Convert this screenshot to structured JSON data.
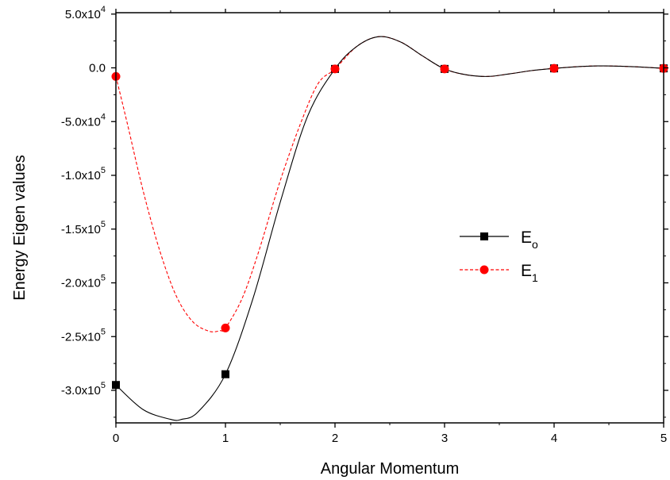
{
  "chart_data": {
    "type": "line",
    "title": "",
    "xlabel": "Angular Momentum",
    "ylabel": "Energy Eigen values",
    "xlim": [
      0,
      5
    ],
    "ylim": [
      -325000,
      52000
    ],
    "x_ticks": [
      0,
      1,
      2,
      3,
      4,
      5
    ],
    "x_tick_labels": [
      "0",
      "1",
      "2",
      "3",
      "4",
      "5"
    ],
    "y_ticks": [
      50000,
      0,
      -50000,
      -100000,
      -150000,
      -200000,
      -250000,
      -300000
    ],
    "y_tick_labels": [
      {
        "mantissa": "5.0x10",
        "exp": "4"
      },
      {
        "mantissa": "0.0",
        "exp": ""
      },
      {
        "mantissa": "-5.0x10",
        "exp": "4"
      },
      {
        "mantissa": "-1.0x10",
        "exp": "5"
      },
      {
        "mantissa": "-1.5x10",
        "exp": "5"
      },
      {
        "mantissa": "-2.0x10",
        "exp": "5"
      },
      {
        "mantissa": "-2.5x10",
        "exp": "5"
      },
      {
        "mantissa": "-3.0x10",
        "exp": "5"
      }
    ],
    "grid": false,
    "legend_position": "right-middle",
    "series": [
      {
        "name": "E",
        "name_subscript": "o",
        "color": "#000000",
        "line_style": "solid",
        "marker": "square",
        "x": [
          0,
          1,
          2,
          3,
          4,
          5
        ],
        "y": [
          -295000,
          -285000,
          -1000,
          -1000,
          -500,
          -500
        ],
        "curve_x": [
          0,
          0.25,
          0.5,
          0.6,
          0.75,
          1.0,
          1.25,
          1.5,
          1.75,
          2.0,
          2.2,
          2.4,
          2.6,
          2.8,
          3.0,
          3.2,
          3.4,
          3.6,
          3.8,
          4.0,
          4.2,
          4.4,
          4.6,
          4.8,
          5.0
        ],
        "curve_y": [
          -295000,
          -318000,
          -327000,
          -327000,
          -320000,
          -285000,
          -215000,
          -125000,
          -45000,
          -1000,
          20000,
          29000,
          24000,
          11000,
          -1000,
          -6500,
          -8000,
          -5500,
          -2500,
          -500,
          1000,
          1800,
          1500,
          700,
          -500
        ]
      },
      {
        "name": "E",
        "name_subscript": "1",
        "color": "#ff0000",
        "line_style": "dashed",
        "marker": "circle",
        "x": [
          0,
          1,
          2,
          3,
          4,
          5
        ],
        "y": [
          -8000,
          -242000,
          -1000,
          -1000,
          -500,
          -500
        ],
        "curve_x": [
          0,
          0.1,
          0.25,
          0.4,
          0.55,
          0.7,
          0.85,
          0.95,
          1.0,
          1.15,
          1.3,
          1.5,
          1.7,
          1.85,
          2.0,
          2.2,
          2.4,
          2.6,
          2.8,
          3.0,
          3.2,
          3.4,
          3.6,
          3.8,
          4.0,
          4.2,
          4.4,
          4.6,
          4.8,
          5.0
        ],
        "curve_y": [
          -8000,
          -50000,
          -115000,
          -170000,
          -212000,
          -236000,
          -245000,
          -244500,
          -242000,
          -215000,
          -172000,
          -105000,
          -48000,
          -14000,
          -1000,
          20000,
          29000,
          24000,
          11000,
          -1000,
          -6500,
          -8000,
          -5500,
          -2500,
          -500,
          1000,
          1800,
          1500,
          700,
          -500
        ]
      }
    ]
  }
}
